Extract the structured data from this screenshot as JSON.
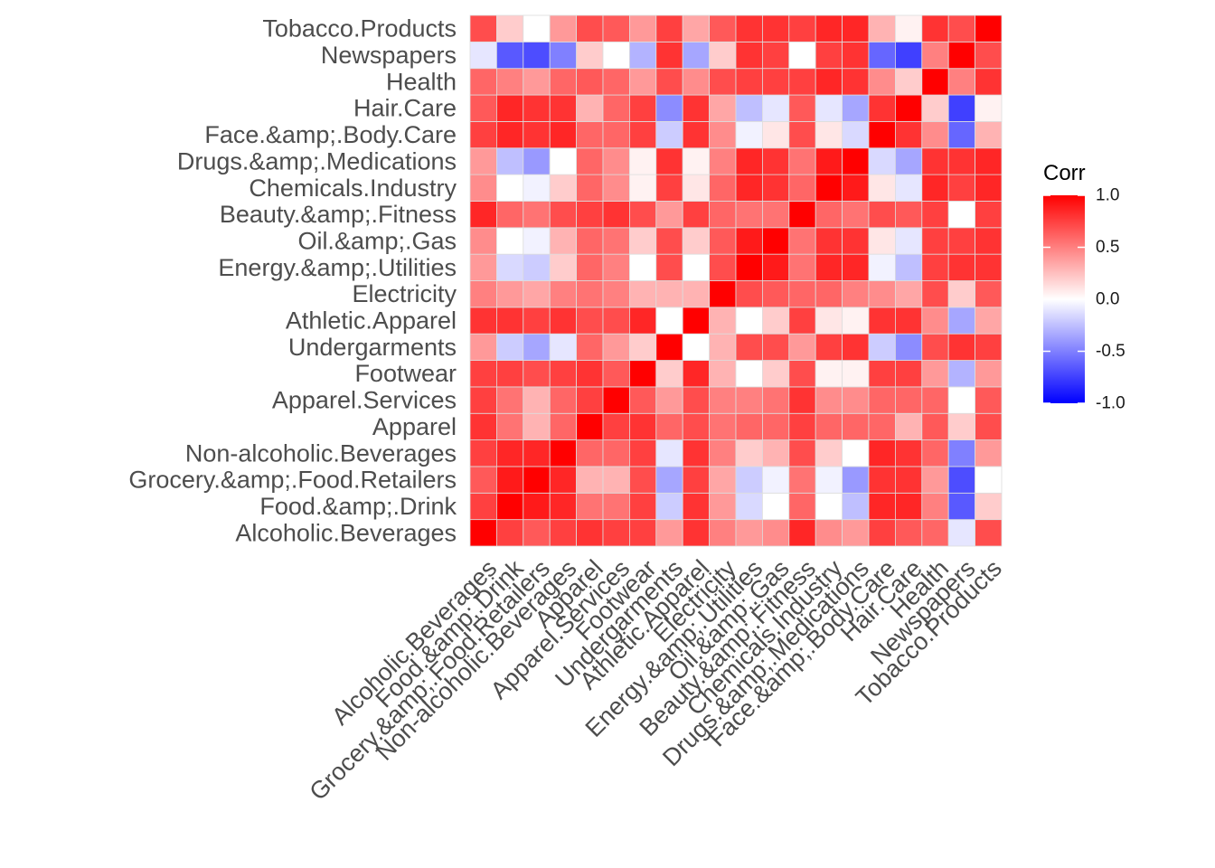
{
  "chart_data": {
    "type": "heatmap",
    "variables": [
      "Alcoholic.Beverages",
      "Food.&amp;.Drink",
      "Grocery.&amp;.Food.Retailers",
      "Non-alcoholic.Beverages",
      "Apparel",
      "Apparel.Services",
      "Footwear",
      "Undergarments",
      "Athletic.Apparel",
      "Electricity",
      "Energy.&amp;.Utilities",
      "Oil.&amp;.Gas",
      "Beauty.&amp;.Fitness",
      "Chemicals.Industry",
      "Drugs.&amp;.Medications",
      "Face.&amp;.Body.Care",
      "Hair.Care",
      "Health",
      "Newspapers",
      "Tobacco.Products"
    ],
    "matrix": [
      [
        1.0,
        0.75,
        0.65,
        0.75,
        0.8,
        0.75,
        0.75,
        0.4,
        0.8,
        0.5,
        0.4,
        0.45,
        0.85,
        0.45,
        0.4,
        0.75,
        0.65,
        0.6,
        -0.1,
        0.7
      ],
      [
        0.75,
        1.0,
        0.9,
        0.85,
        0.55,
        0.55,
        0.75,
        -0.2,
        0.8,
        0.4,
        -0.15,
        0.0,
        0.6,
        0.0,
        -0.25,
        0.85,
        0.85,
        0.5,
        -0.65,
        0.2
      ],
      [
        0.65,
        0.9,
        1.0,
        0.85,
        0.3,
        0.3,
        0.7,
        -0.35,
        0.75,
        0.35,
        -0.2,
        -0.05,
        0.55,
        -0.05,
        -0.4,
        0.8,
        0.8,
        0.4,
        -0.7,
        0.0
      ],
      [
        0.75,
        0.85,
        0.85,
        1.0,
        0.6,
        0.6,
        0.75,
        -0.1,
        0.8,
        0.5,
        0.2,
        0.3,
        0.7,
        0.2,
        0.0,
        0.85,
        0.8,
        0.6,
        -0.5,
        0.4
      ],
      [
        0.8,
        0.55,
        0.3,
        0.6,
        1.0,
        0.75,
        0.8,
        0.6,
        0.7,
        0.55,
        0.6,
        0.6,
        0.75,
        0.6,
        0.6,
        0.6,
        0.3,
        0.65,
        0.2,
        0.7
      ],
      [
        0.75,
        0.55,
        0.3,
        0.6,
        0.75,
        1.0,
        0.65,
        0.4,
        0.7,
        0.5,
        0.5,
        0.55,
        0.8,
        0.45,
        0.45,
        0.6,
        0.6,
        0.6,
        0.0,
        0.65
      ],
      [
        0.75,
        0.75,
        0.7,
        0.75,
        0.8,
        0.65,
        1.0,
        0.2,
        0.85,
        0.3,
        0.0,
        0.2,
        0.7,
        0.05,
        0.05,
        0.75,
        0.75,
        0.4,
        -0.3,
        0.4
      ],
      [
        0.4,
        -0.2,
        -0.35,
        -0.1,
        0.6,
        0.4,
        0.2,
        1.0,
        0.0,
        0.3,
        0.7,
        0.7,
        0.4,
        0.75,
        0.8,
        -0.2,
        -0.45,
        0.7,
        0.8,
        0.75
      ],
      [
        0.8,
        0.8,
        0.75,
        0.8,
        0.7,
        0.7,
        0.85,
        0.0,
        1.0,
        0.3,
        0.0,
        0.2,
        0.75,
        0.1,
        0.05,
        0.8,
        0.8,
        0.45,
        -0.35,
        0.35
      ],
      [
        0.5,
        0.4,
        0.35,
        0.5,
        0.55,
        0.5,
        0.3,
        0.3,
        0.3,
        1.0,
        0.7,
        0.65,
        0.6,
        0.6,
        0.5,
        0.45,
        0.35,
        0.7,
        0.2,
        0.65
      ],
      [
        0.4,
        -0.15,
        -0.2,
        0.2,
        0.6,
        0.5,
        0.0,
        0.7,
        0.0,
        0.7,
        1.0,
        0.9,
        0.55,
        0.85,
        0.85,
        -0.05,
        -0.25,
        0.75,
        0.8,
        0.8
      ],
      [
        0.45,
        0.0,
        -0.05,
        0.3,
        0.6,
        0.55,
        0.2,
        0.7,
        0.2,
        0.65,
        0.9,
        1.0,
        0.55,
        0.8,
        0.8,
        0.1,
        -0.1,
        0.75,
        0.75,
        0.8
      ],
      [
        0.85,
        0.6,
        0.55,
        0.7,
        0.75,
        0.8,
        0.7,
        0.4,
        0.75,
        0.6,
        0.55,
        0.55,
        1.0,
        0.6,
        0.55,
        0.7,
        0.65,
        0.75,
        0.0,
        0.75
      ],
      [
        0.45,
        0.0,
        -0.05,
        0.2,
        0.6,
        0.45,
        0.05,
        0.75,
        0.1,
        0.6,
        0.85,
        0.8,
        0.6,
        1.0,
        0.9,
        0.1,
        -0.1,
        0.85,
        0.75,
        0.85
      ],
      [
        0.4,
        -0.25,
        -0.4,
        0.0,
        0.6,
        0.45,
        0.05,
        0.8,
        0.05,
        0.5,
        0.85,
        0.8,
        0.55,
        0.9,
        1.0,
        -0.15,
        -0.35,
        0.8,
        0.8,
        0.85
      ],
      [
        0.75,
        0.85,
        0.8,
        0.85,
        0.6,
        0.6,
        0.75,
        -0.2,
        0.8,
        0.45,
        -0.05,
        0.1,
        0.7,
        0.1,
        -0.15,
        1.0,
        0.8,
        0.45,
        -0.6,
        0.3
      ],
      [
        0.65,
        0.85,
        0.8,
        0.8,
        0.3,
        0.6,
        0.75,
        -0.45,
        0.8,
        0.35,
        -0.25,
        -0.1,
        0.65,
        -0.1,
        -0.35,
        0.8,
        1.0,
        0.2,
        -0.75,
        0.05
      ],
      [
        0.6,
        0.5,
        0.4,
        0.6,
        0.65,
        0.6,
        0.4,
        0.7,
        0.45,
        0.7,
        0.75,
        0.75,
        0.75,
        0.85,
        0.8,
        0.45,
        0.2,
        1.0,
        0.5,
        0.8
      ],
      [
        -0.1,
        -0.65,
        -0.7,
        -0.5,
        0.2,
        0.0,
        -0.3,
        0.8,
        -0.35,
        0.2,
        0.8,
        0.75,
        0.0,
        0.75,
        0.8,
        -0.6,
        -0.75,
        0.5,
        1.0,
        0.7
      ],
      [
        0.7,
        0.2,
        0.0,
        0.4,
        0.7,
        0.65,
        0.4,
        0.75,
        0.35,
        0.65,
        0.8,
        0.8,
        0.75,
        0.85,
        0.85,
        0.3,
        0.05,
        0.8,
        0.7,
        1.0
      ]
    ],
    "legend": {
      "title": "Corr",
      "ticks": [
        1.0,
        0.5,
        0.0,
        -0.5,
        -1.0
      ],
      "tick_labels": [
        "1.0",
        "0.5",
        "0.0",
        "-0.5",
        "-1.0"
      ],
      "placement": "right"
    },
    "colors": {
      "low": "#0000ff",
      "mid": "#ffffff",
      "high": "#ff0000"
    },
    "limits": [
      -1,
      1
    ],
    "title": "",
    "xlabel": "",
    "ylabel": "",
    "grid": false
  }
}
